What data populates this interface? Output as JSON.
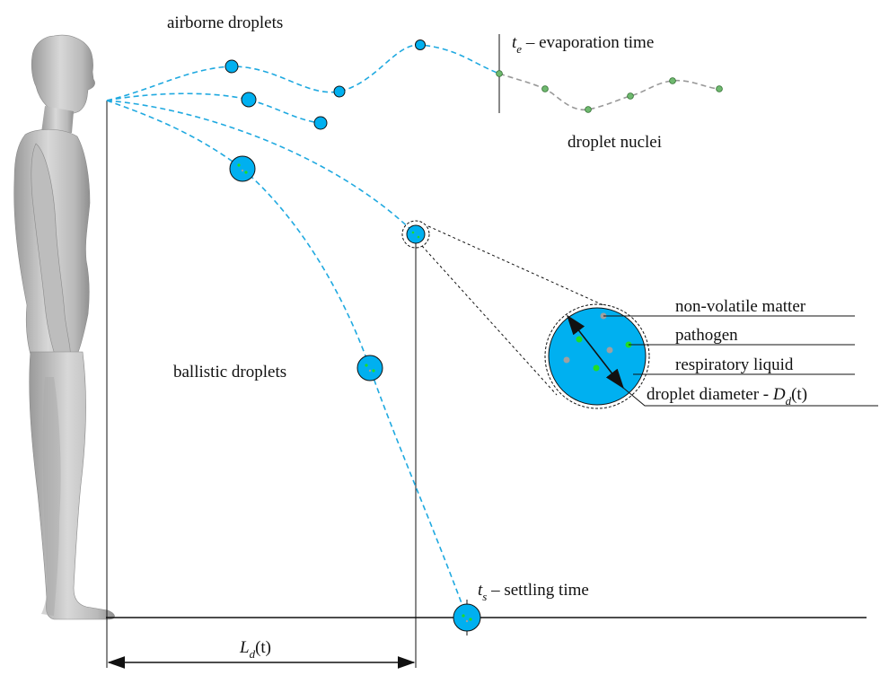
{
  "labels": {
    "airborne": "airborne droplets",
    "evap_symbol": "t",
    "evap_sub": "e",
    "evap_text": " – evaporation time",
    "nuclei": "droplet nuclei",
    "ballistic": "ballistic droplets",
    "settle_symbol": "t",
    "settle_sub": "s",
    "settle_text": " – settling time",
    "distance_symbol": "L",
    "distance_sub": "d",
    "distance_arg": "(t)"
  },
  "callouts": {
    "nonvolatile": "non-volatile matter",
    "pathogen": "pathogen",
    "liquid": "respiratory liquid",
    "diameter_text": "droplet diameter - ",
    "diameter_symbol": "D",
    "diameter_sub": "d",
    "diameter_arg": "(t)"
  },
  "colors": {
    "droplet_fill": "#00b0f0",
    "trajectory": "#1fa9e0",
    "nucleus": "#6fb96f",
    "nuclei_path": "#999999",
    "pathogen": "#22dd22",
    "nonvolatile": "#a0a0a0",
    "body_skin": "#c8c8c8"
  }
}
